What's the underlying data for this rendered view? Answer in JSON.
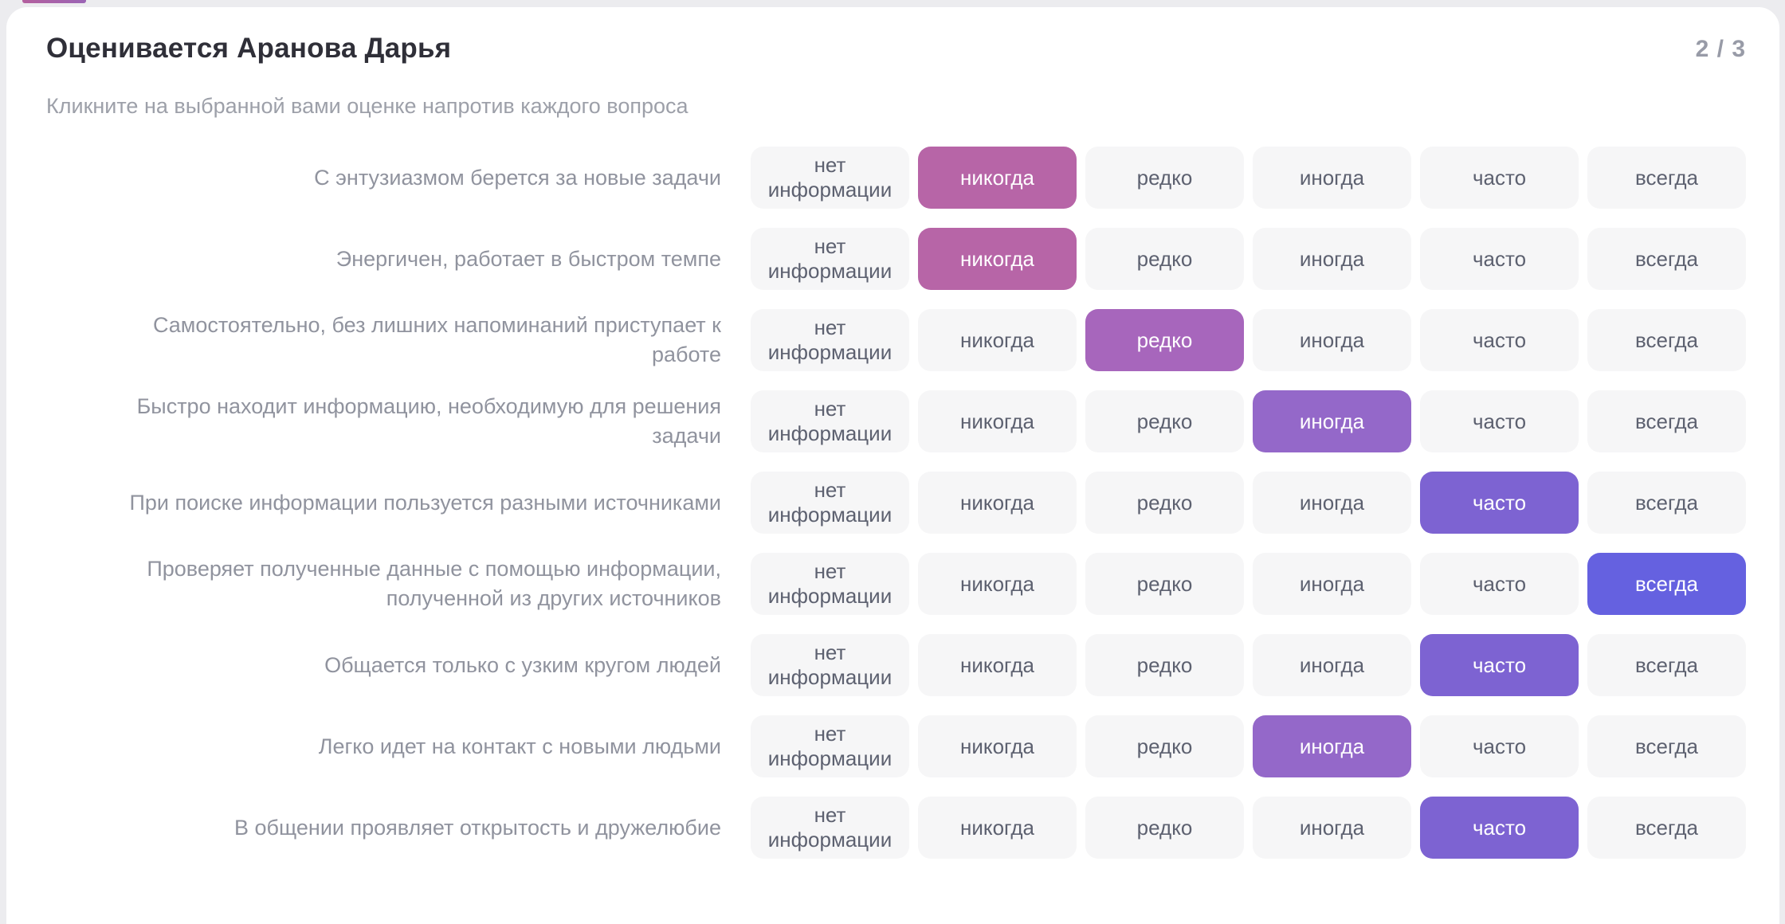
{
  "page": {
    "title": "Оценивается Аранова Дарья",
    "subtitle": "Кликните на выбранной вами оценке напротив каждого вопроса",
    "step_indicator": "2 / 3"
  },
  "colors": {
    "page_background": "#ececef",
    "card_background": "#ffffff",
    "accent_bar_gradient_start": "#b4609e",
    "accent_bar_gradient_end": "#9b64b5",
    "option_default_background": "#f6f6f7",
    "option_default_text": "#5d6170",
    "option_selected_text": "#ffffff",
    "title_text": "#2f2f38",
    "subtitle_text": "#9da0a9",
    "question_text": "#90939e",
    "counter_text": "#989ba7"
  },
  "options": [
    {
      "label": "нет информации",
      "name": "option-no-info",
      "selected_color": null
    },
    {
      "label": "никогда",
      "name": "option-never",
      "selected_color": "#b765a7"
    },
    {
      "label": "редко",
      "name": "option-rarely",
      "selected_color": "#a766bc"
    },
    {
      "label": "иногда",
      "name": "option-sometimes",
      "selected_color": "#9468c9"
    },
    {
      "label": "часто",
      "name": "option-often",
      "selected_color": "#7d63d2"
    },
    {
      "label": "всегда",
      "name": "option-always",
      "selected_color": "#6561e0"
    }
  ],
  "questions": [
    {
      "label": "С энтузиазмом берется за новые задачи",
      "selected_option": "никогда"
    },
    {
      "label": "Энергичен, работает в быстром темпе",
      "selected_option": "никогда"
    },
    {
      "label": "Самостоятельно, без лишних напоминаний приступает к работе",
      "selected_option": "редко"
    },
    {
      "label": "Быстро находит информацию, необходимую для решения задачи",
      "selected_option": "иногда"
    },
    {
      "label": "При поиске информации пользуется разными источниками",
      "selected_option": "часто"
    },
    {
      "label": "Проверяет полученные данные с помощью информации, полученной из других источников",
      "selected_option": "всегда"
    },
    {
      "label": "Общается только с узким кругом людей",
      "selected_option": "часто"
    },
    {
      "label": "Легко идет на контакт с новыми людьми",
      "selected_option": "иногда"
    },
    {
      "label": "В общении проявляет открытость и дружелюбие",
      "selected_option": "часто"
    }
  ]
}
